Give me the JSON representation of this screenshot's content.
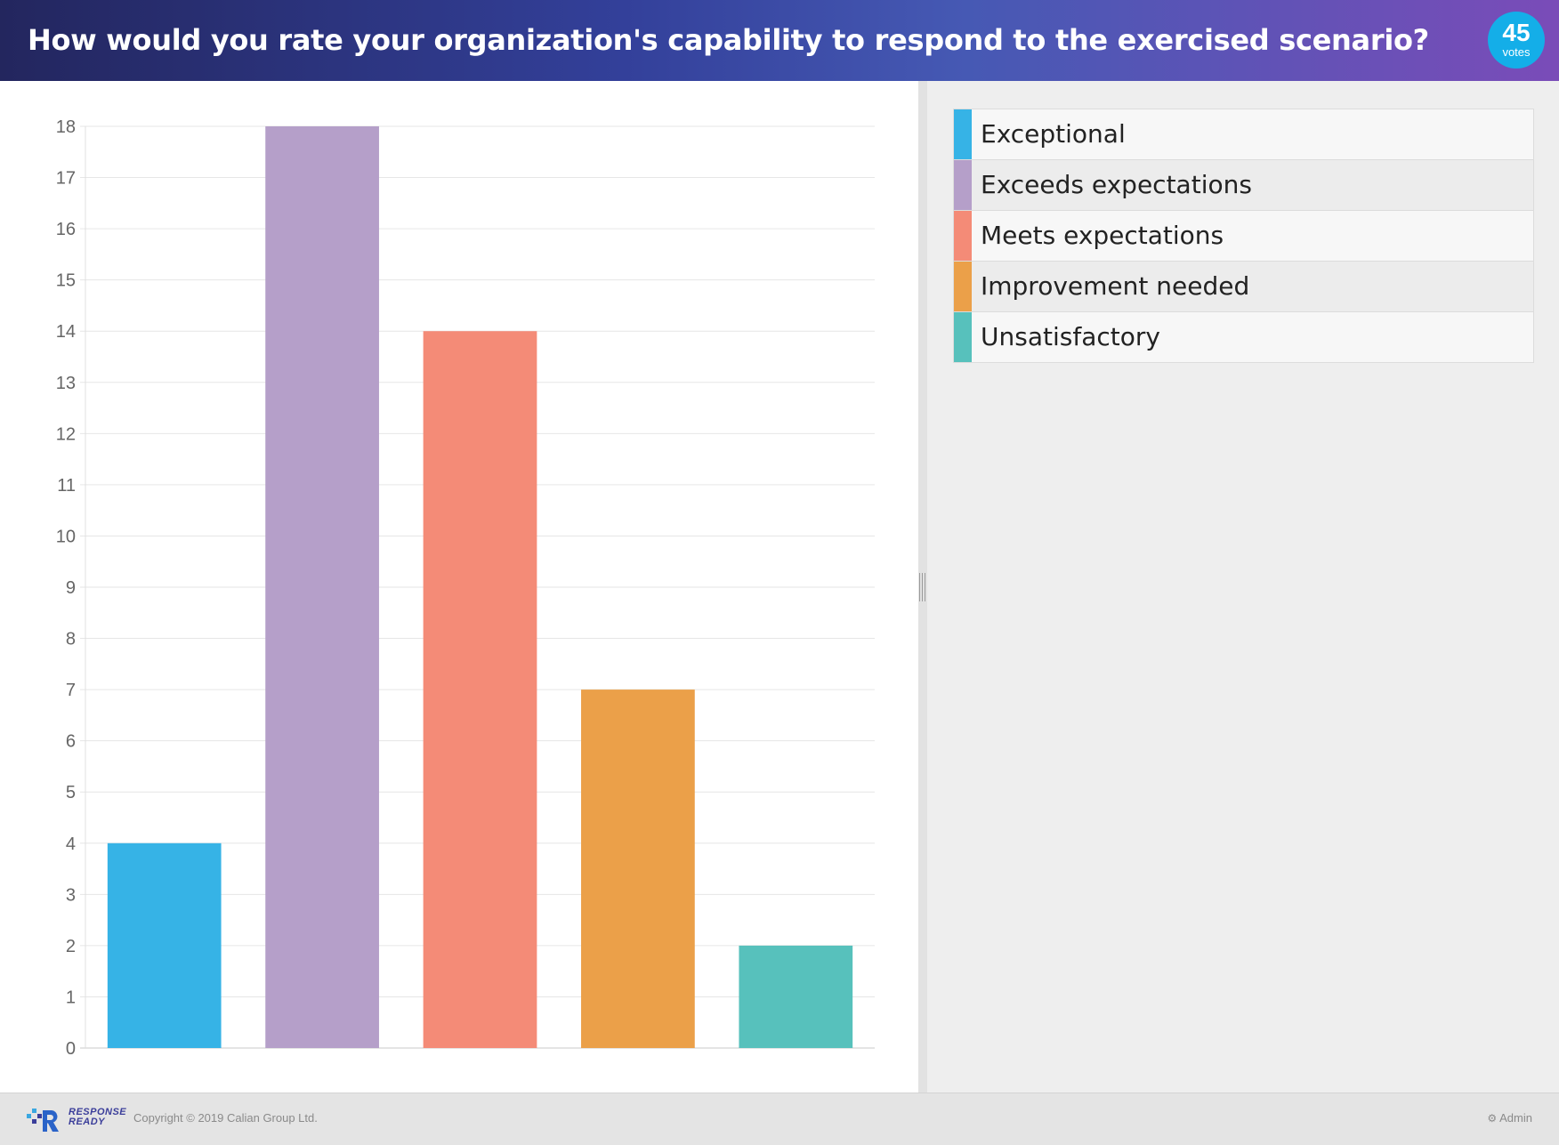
{
  "header": {
    "question": "How would you rate your organization's capability to respond to the exercised scenario?",
    "votes_count": "45",
    "votes_label": "votes"
  },
  "chart_data": {
    "type": "bar",
    "categories": [
      "Exceptional",
      "Exceeds expectations",
      "Meets expectations",
      "Improvement needed",
      "Unsatisfactory"
    ],
    "values": [
      4,
      18,
      14,
      7,
      2
    ],
    "colors": [
      "#36b3e6",
      "#b59fc9",
      "#f48b77",
      "#eba049",
      "#57c1bc"
    ],
    "ylim": [
      0,
      18
    ],
    "yticks": [
      "0",
      "1",
      "2",
      "3",
      "4",
      "5",
      "6",
      "7",
      "8",
      "9",
      "10",
      "11",
      "12",
      "13",
      "14",
      "15",
      "16",
      "17",
      "18"
    ],
    "grid": true,
    "title": "",
    "xlabel": "",
    "ylabel": ""
  },
  "legend": {
    "items": [
      {
        "label": "Exceptional",
        "color": "#36b3e6"
      },
      {
        "label": "Exceeds expectations",
        "color": "#b59fc9"
      },
      {
        "label": "Meets expectations",
        "color": "#f48b77"
      },
      {
        "label": "Improvement needed",
        "color": "#eba049"
      },
      {
        "label": "Unsatisfactory",
        "color": "#57c1bc"
      }
    ]
  },
  "footer": {
    "logo_line1": "RESPONSE",
    "logo_line2": "READY",
    "copyright": "Copyright © 2019 Calian Group Ltd.",
    "admin_label": "Admin",
    "admin_icon": "gear-icon"
  }
}
